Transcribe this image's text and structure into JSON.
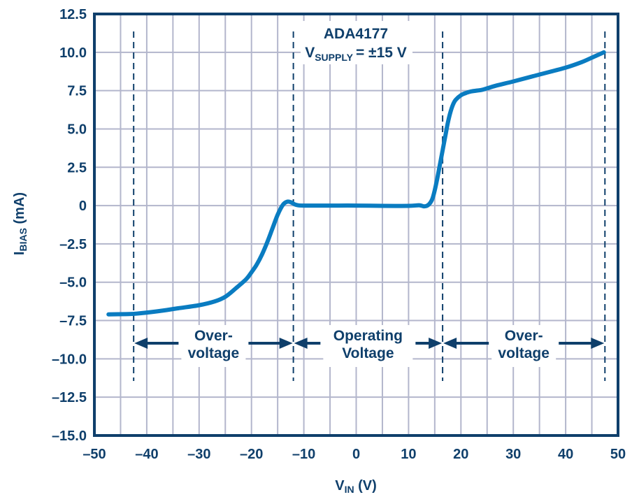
{
  "chart_data": {
    "type": "line",
    "title": "",
    "annotation_title": "ADA4177",
    "annotation_supply_main": "V",
    "annotation_supply_sub": "SUPPLY",
    "annotation_supply_value": "=  ±15 V",
    "xlabel_main": "V",
    "xlabel_sub": "IN",
    "xlabel_unit": " (V)",
    "ylabel_main": "I",
    "ylabel_sub": "BIAS",
    "ylabel_unit": " (mA)",
    "xlim": [
      -50,
      50
    ],
    "ylim": [
      -15,
      12.5
    ],
    "x_ticks": [
      -50,
      -40,
      -30,
      -20,
      -10,
      0,
      10,
      20,
      30,
      40,
      50
    ],
    "x_tick_labels": [
      "–50",
      "–40",
      "–30",
      "–20",
      "–10",
      "0",
      "10",
      "20",
      "30",
      "40",
      "50"
    ],
    "y_ticks": [
      12.5,
      10,
      7.5,
      5,
      2.5,
      0,
      -2.5,
      -5,
      -7.5,
      -10,
      -12.5,
      -15
    ],
    "y_tick_labels": [
      "12.5",
      "10.0",
      "7.5",
      "5.0",
      "2.5",
      "0",
      "–2.5",
      "–5.0",
      "–7.5",
      "–10.0",
      "–12.5",
      "–15.0"
    ],
    "grid": true,
    "grid_x_step": 5,
    "grid_y_step": 2.5,
    "series": [
      {
        "name": "IBIAS",
        "color": "#0a7cc1",
        "x": [
          -47.3,
          -44,
          -42,
          -38,
          -34,
          -30,
          -27,
          -25,
          -23,
          -21,
          -20,
          -19,
          -18,
          -17,
          -16,
          -15,
          -14,
          -13.2,
          -12.5,
          -11.5,
          -10,
          -5,
          0,
          5,
          10,
          12,
          13,
          13.8,
          14.5,
          15,
          15.5,
          16,
          16.5,
          17,
          17.5,
          18,
          18.5,
          19,
          20,
          21,
          22,
          24,
          25,
          27,
          30,
          35,
          40,
          43,
          45,
          47.3
        ],
        "y": [
          -7.1,
          -7.08,
          -7.05,
          -6.9,
          -6.7,
          -6.5,
          -6.25,
          -5.95,
          -5.4,
          -4.8,
          -4.35,
          -3.85,
          -3.2,
          -2.4,
          -1.5,
          -0.6,
          0.05,
          0.25,
          0.22,
          0.05,
          0.0,
          0.0,
          0.0,
          -0.02,
          -0.02,
          0.02,
          -0.05,
          0.05,
          0.4,
          1.0,
          1.8,
          2.7,
          3.6,
          4.5,
          5.4,
          6.1,
          6.6,
          6.9,
          7.2,
          7.35,
          7.45,
          7.55,
          7.65,
          7.85,
          8.1,
          8.55,
          9.0,
          9.35,
          9.65,
          10.0
        ]
      }
    ],
    "region_boundaries_x": [
      -42.5,
      -12,
      16.5,
      47.5
    ],
    "regions": [
      {
        "label_line1": "Over-",
        "label_line2": "voltage",
        "from": -42.5,
        "to": -12
      },
      {
        "label_line1": "Operating",
        "label_line2": "Voltage",
        "from": -12,
        "to": 16.5
      },
      {
        "label_line1": "Over-",
        "label_line2": "voltage",
        "from": 16.5,
        "to": 47.5
      }
    ],
    "colors": {
      "axis": "#0f3f6b",
      "grid": "#b3b6cc",
      "curve": "#0a7cc1",
      "text": "#0f3f6b"
    }
  }
}
